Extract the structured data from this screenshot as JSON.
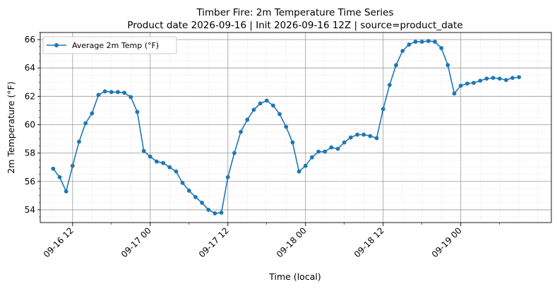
{
  "chart_data": {
    "type": "line",
    "title": "Timber Fire: 2m Temperature Time Series",
    "subtitle": "Product date 2026-09-16 | Init 2026-09-16 12Z | source=product_date",
    "xlabel": "Time (local)",
    "ylabel": "2m Temperature (°F)",
    "x_unit": "hours",
    "xlim": [
      "2026-09-16 07:00",
      "2026-09-19 14:00"
    ],
    "ylim": [
      53.1,
      66.5
    ],
    "yticks": [
      54,
      56,
      58,
      60,
      62,
      64,
      66
    ],
    "xticks": [
      {
        "value": "2026-09-16 12:00",
        "label": "09-16 12"
      },
      {
        "value": "2026-09-17 00:00",
        "label": "09-17 00"
      },
      {
        "value": "2026-09-17 12:00",
        "label": "09-17 12"
      },
      {
        "value": "2026-09-18 00:00",
        "label": "09-18 00"
      },
      {
        "value": "2026-09-18 12:00",
        "label": "09-18 12"
      },
      {
        "value": "2026-09-19 00:00",
        "label": "09-19 00"
      }
    ],
    "grid": true,
    "legend_position": "top-left",
    "series": [
      {
        "name": "Average 2m Temp (°F)",
        "color": "#1f77b4",
        "marker": "circle",
        "start": "2026-09-16 09:00",
        "step_hours": 1,
        "values": [
          56.9,
          56.3,
          55.3,
          57.1,
          58.8,
          60.1,
          60.8,
          62.1,
          62.35,
          62.3,
          62.3,
          62.25,
          61.95,
          60.9,
          58.15,
          57.75,
          57.4,
          57.3,
          57.0,
          56.7,
          55.9,
          55.35,
          54.9,
          54.5,
          54.0,
          53.75,
          53.8,
          56.3,
          58.0,
          59.5,
          60.35,
          61.05,
          61.5,
          61.7,
          61.35,
          60.75,
          59.85,
          58.75,
          56.7,
          57.1,
          57.7,
          58.1,
          58.1,
          58.4,
          58.3,
          58.75,
          59.1,
          59.3,
          59.3,
          59.2,
          59.05,
          61.1,
          62.8,
          64.2,
          65.2,
          65.65,
          65.85,
          65.85,
          65.9,
          65.85,
          65.4,
          64.2,
          62.2,
          62.75,
          62.9,
          62.95,
          63.1,
          63.25,
          63.3,
          63.25,
          63.15,
          63.3,
          63.35
        ]
      }
    ]
  }
}
